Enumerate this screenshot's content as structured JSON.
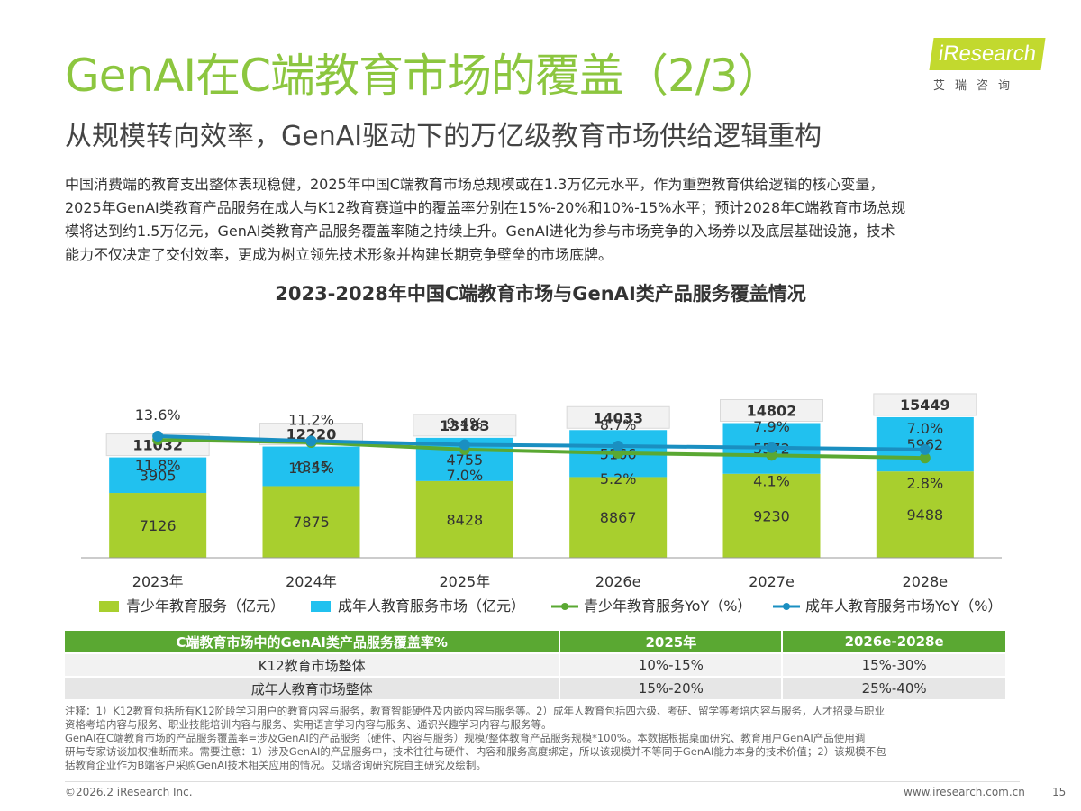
{
  "page": {
    "title": "GenAI在C端教育市场的覆盖（2/3）",
    "subtitle": "从规模转向效率，GenAI驱动下的万亿级教育市场供给逻辑重构",
    "logo_text": "iResearch",
    "logo_cn": "艾瑞咨询",
    "intro_lines": [
      "中国消费端的教育支出整体表现稳健，2025年中国C端教育市场总规模或在1.3万亿元水平，作为重塑教育供给逻辑的核心变量，",
      "2025年GenAI类教育产品服务在成人与K12教育赛道中的覆盖率分别在15%-20%和10%-15%水平；预计2028年C端教育市场总规",
      "模将达到约1.5万亿元，GenAI类教育产品服务覆盖率随之持续上升。GenAI进化为参与市场竞争的入场券以及底层基础设施，技术",
      "能力不仅决定了交付效率，更成为树立领先技术形象并构建长期竞争壁垒的市场底牌。"
    ],
    "chart_title": "2023-2028年中国C端教育市场与GenAI类产品服务覆盖情况",
    "notes": [
      "注释：1）K12教育包括所有K12阶段学习用户的教育内容与服务，教育智能硬件及内嵌内容与服务等。2）成年人教育包括四六级、考研、留学等考培内容与服务，人才招录与职业",
      "资格考培内容与服务、职业技能培训内容与服务、实用语言学习内容与服务、通识兴趣学习内容与服务等。",
      "GenAI在C端教育市场的产品服务覆盖率=涉及GenAI的产品服务（硬件、内容与服务）规模/整体教育产品服务规模*100%。本数据根据桌面研究、教育用户GenAI产品使用调",
      "研与专家访谈加权推断而来。需要注意：1）涉及GenAI的产品服务中，技术往往与硬件、内容和服务高度绑定，所以该规模并不等同于GenAI能力本身的技术价值；2）该规模不包",
      "括教育企业作为B端客户采购GenAI技术相关应用的情况。艾瑞咨询研究院自主研究及绘制。"
    ],
    "copyright": "©2026.2 iResearch Inc.",
    "website": "www.iresearch.com.cn",
    "page_number": "15"
  },
  "chart_data": {
    "type": "bar",
    "stacked": true,
    "categories": [
      "2023年",
      "2024年",
      "2025年",
      "2026e",
      "2027e",
      "2028e"
    ],
    "series": [
      {
        "name": "青少年教育服务（亿元）",
        "kind": "bar",
        "color": "#a8cf2e",
        "values": [
          7126,
          7875,
          8428,
          8867,
          9230,
          9488
        ]
      },
      {
        "name": "成年人教育服务市场（亿元）",
        "kind": "bar",
        "color": "#21c1ef",
        "values": [
          3905,
          4345,
          4755,
          5166,
          5572,
          5962
        ]
      },
      {
        "name": "青少年教育服务YoY（%）",
        "kind": "line",
        "color": "#5aa832",
        "values": [
          11.8,
          10.5,
          7.0,
          5.2,
          4.1,
          2.8
        ]
      },
      {
        "name": "成年人教育服务市场YoY（%）",
        "kind": "line",
        "color": "#1a8fc1",
        "values": [
          13.6,
          11.2,
          9.4,
          8.7,
          7.9,
          7.0
        ]
      }
    ],
    "totals": [
      11032,
      12220,
      13183,
      14033,
      14802,
      15449
    ],
    "teen_yoy_labels": [
      "11.8%",
      "10.5%",
      "7.0%",
      "5.2%",
      "4.1%",
      "2.8%"
    ],
    "adult_yoy_labels": [
      "13.6%",
      "11.2%",
      "9.4%",
      "8.7%",
      "7.9%",
      "7.0%"
    ],
    "legend_position": "bottom"
  },
  "table": {
    "headers": [
      "C端教育市场中的GenAI类产品服务覆盖率%",
      "2025年",
      "2026e-2028e"
    ],
    "rows": [
      [
        "K12教育市场整体",
        "10%-15%",
        "15%-30%"
      ],
      [
        "成年人教育市场整体",
        "15%-20%",
        "25%-40%"
      ]
    ]
  }
}
